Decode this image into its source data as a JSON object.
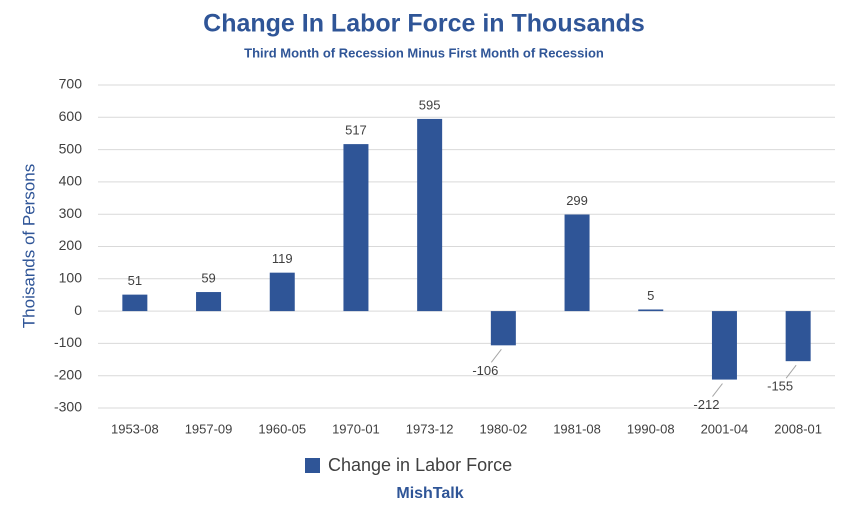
{
  "chart_data": {
    "type": "bar",
    "title": "Change In Labor Force in Thousands",
    "subtitle": "Third Month of Recession Minus First Month of Recession",
    "y_label": "Thoisands of Persons",
    "source": "MishTalk",
    "categories": [
      "1953-08",
      "1957-09",
      "1960-05",
      "1970-01",
      "1973-12",
      "1980-02",
      "1981-08",
      "1990-08",
      "2001-04",
      "2008-01"
    ],
    "series": [
      {
        "name": "Change in Labor Force",
        "color": "#2f5597",
        "values": [
          51,
          59,
          119,
          517,
          595,
          -106,
          299,
          5,
          -212,
          -155
        ]
      }
    ],
    "ylim": [
      -300,
      700
    ],
    "yticks": [
      -300,
      -200,
      -100,
      0,
      100,
      200,
      300,
      400,
      500,
      600,
      700
    ],
    "grid": true,
    "legend": "bottom"
  }
}
